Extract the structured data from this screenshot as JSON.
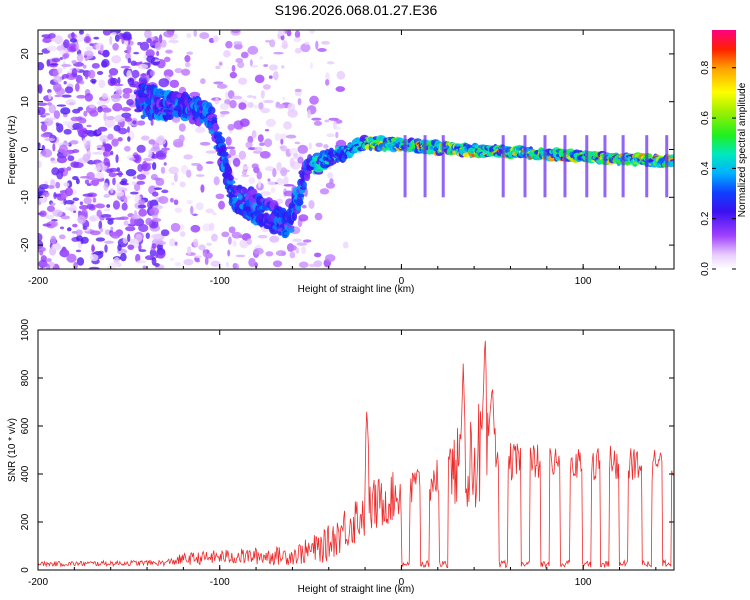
{
  "title": "S196.2026.068.01.27.E36",
  "chart_data": [
    {
      "type": "heatmap",
      "name": "spectrogram",
      "xlabel": "Height of straight line (km)",
      "ylabel": "Frequency (Hz)",
      "xlim": [
        -200,
        150
      ],
      "ylim": [
        -25,
        25
      ],
      "xticks": [
        -200,
        -100,
        0,
        100
      ],
      "yticks": [
        -20,
        -10,
        0,
        10,
        20
      ],
      "ridge": [
        {
          "x": -140,
          "y": 10,
          "spread": 3
        },
        {
          "x": -120,
          "y": 9,
          "spread": 2
        },
        {
          "x": -105,
          "y": 7,
          "spread": 2
        },
        {
          "x": -92,
          "y": -10,
          "spread": 2
        },
        {
          "x": -80,
          "y": -12,
          "spread": 3
        },
        {
          "x": -62,
          "y": -16,
          "spread": 2
        },
        {
          "x": -52,
          "y": -4,
          "spread": 2
        },
        {
          "x": -40,
          "y": -2,
          "spread": 1.5
        },
        {
          "x": -20,
          "y": 1.5,
          "spread": 1
        },
        {
          "x": 0,
          "y": 1,
          "spread": 1
        },
        {
          "x": 30,
          "y": 0,
          "spread": 1
        },
        {
          "x": 60,
          "y": -0.5,
          "spread": 0.8
        },
        {
          "x": 100,
          "y": -1.5,
          "spread": 0.8
        },
        {
          "x": 150,
          "y": -2.5,
          "spread": 0.8
        }
      ],
      "colorbar": {
        "label": "Normalized spectral amplitude",
        "range": [
          0,
          0.95
        ],
        "ticks": [
          0.0,
          0.2,
          0.4,
          0.6,
          0.8
        ],
        "tick_labels": [
          "0.0",
          "0.2",
          "0.4",
          "0.6",
          "0.8"
        ]
      }
    },
    {
      "type": "line",
      "name": "snr",
      "xlabel": "Height of straight line (km)",
      "ylabel": "SNR (10 * v/v)",
      "xlim": [
        -200,
        150
      ],
      "ylim": [
        0,
        1000
      ],
      "xticks": [
        -200,
        -100,
        0,
        100
      ],
      "yticks": [
        0,
        200,
        400,
        600,
        800,
        1000
      ],
      "color": "#ee2b2b",
      "envelope": [
        {
          "x": -200,
          "base": 25,
          "noise": 10
        },
        {
          "x": -130,
          "base": 30,
          "noise": 12
        },
        {
          "x": -120,
          "base": 45,
          "noise": 25
        },
        {
          "x": -100,
          "base": 55,
          "noise": 30
        },
        {
          "x": -60,
          "base": 60,
          "noise": 40
        },
        {
          "x": -42,
          "base": 100,
          "noise": 70
        },
        {
          "x": -20,
          "base": 250,
          "noise": 120
        },
        {
          "x": 0,
          "base": 320,
          "noise": 100
        },
        {
          "x": 20,
          "base": 380,
          "noise": 90
        },
        {
          "x": 35,
          "base": 450,
          "noise": 200
        },
        {
          "x": 48,
          "base": 500,
          "noise": 250
        },
        {
          "x": 55,
          "base": 450,
          "noise": 80
        },
        {
          "x": 150,
          "base": 440,
          "noise": 70
        }
      ],
      "peaks": [
        {
          "x": -19,
          "y": 680
        },
        {
          "x": 34,
          "y": 860
        },
        {
          "x": 46,
          "y": 1000
        },
        {
          "x": 50,
          "y": 800
        }
      ],
      "dropouts_x": [
        2,
        13,
        23,
        56,
        68,
        79,
        90,
        102,
        112,
        122,
        135,
        146
      ]
    }
  ]
}
